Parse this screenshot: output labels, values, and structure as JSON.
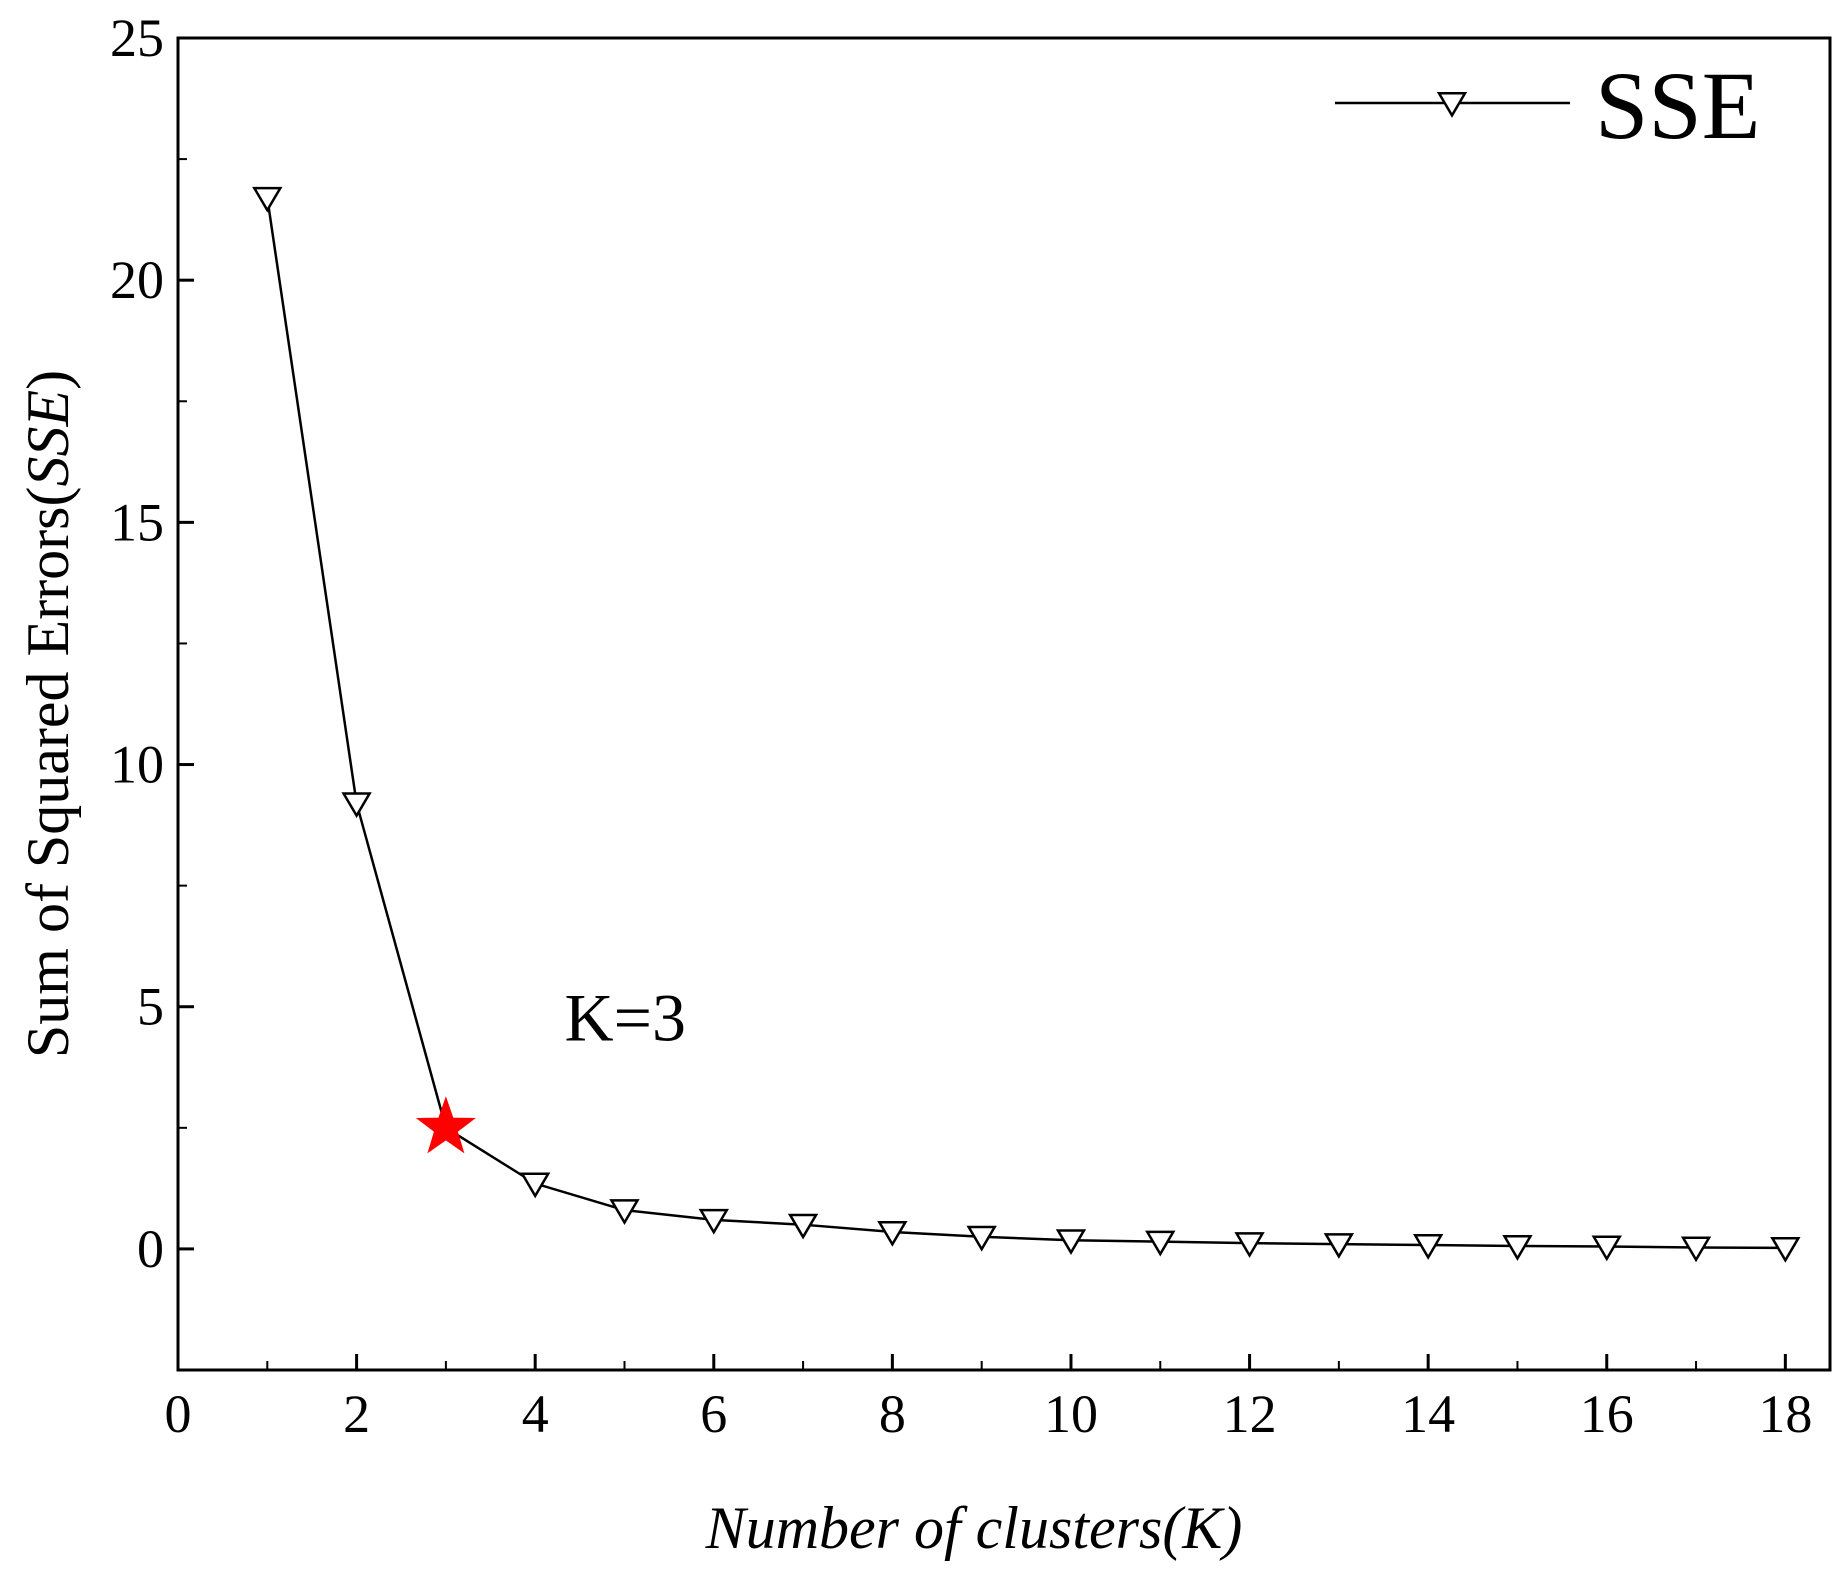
{
  "chart_data": {
    "type": "line",
    "xlabel": "Number of clusters(K)",
    "ylabel_main": "Sum of Squared Errors(",
    "ylabel_italic": "SSE",
    "ylabel_close": ")",
    "xlim": [
      0,
      18.5
    ],
    "ylim": [
      -2.5,
      25
    ],
    "xticks": [
      0,
      2,
      4,
      6,
      8,
      10,
      12,
      14,
      16,
      18
    ],
    "yticks": [
      0,
      5,
      10,
      15,
      20,
      25
    ],
    "grid": false,
    "legend": {
      "position": "top-right",
      "entries": [
        "SSE"
      ]
    },
    "series": [
      {
        "name": "SSE",
        "color": "#000000",
        "marker": "triangle-down-open",
        "x": [
          1,
          2,
          3,
          4,
          5,
          6,
          7,
          8,
          9,
          10,
          11,
          12,
          13,
          14,
          15,
          16,
          17,
          18
        ],
        "y": [
          21.7,
          9.2,
          2.5,
          1.35,
          0.8,
          0.6,
          0.5,
          0.35,
          0.25,
          0.18,
          0.15,
          0.12,
          0.1,
          0.08,
          0.06,
          0.05,
          0.03,
          0.02
        ]
      }
    ],
    "highlight": {
      "x": 3,
      "y": 2.5,
      "marker": "star",
      "color": "#ff0000"
    },
    "annotation": {
      "text": "K=3",
      "x": 5.0,
      "y": 4.8
    }
  }
}
